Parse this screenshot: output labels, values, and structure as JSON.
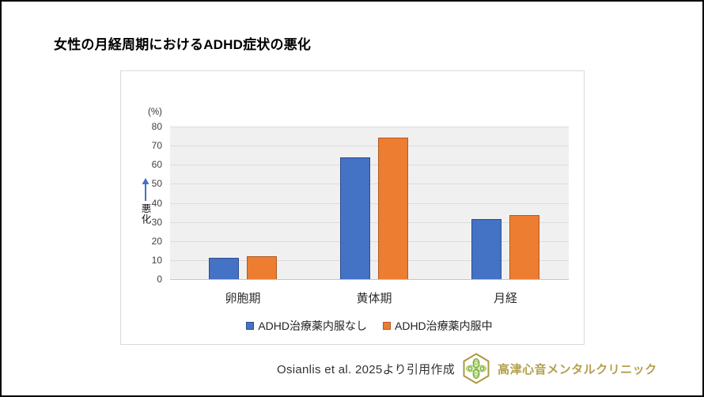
{
  "title": "女性の月経周期におけるADHD症状の悪化",
  "chart_data": {
    "type": "bar",
    "unit_label": "(%)",
    "axis_annotation": {
      "label": "悪化",
      "arrow_direction": "up",
      "arrow_color": "#4472C4"
    },
    "categories": [
      "卵胞期",
      "黄体期",
      "月経"
    ],
    "series": [
      {
        "name": "ADHD治療薬内服なし",
        "color": "#4472C4",
        "border_color": "#2E4D8F",
        "values": [
          11,
          64,
          31.5
        ]
      },
      {
        "name": "ADHD治療薬内服中",
        "color": "#ED7D31",
        "border_color": "#AE5A21",
        "values": [
          12,
          74,
          33.5
        ]
      }
    ],
    "ylim": [
      0,
      80
    ],
    "ytick_step": 10,
    "grid": true,
    "legend_position": "bottom",
    "plot_background": "#F0F0F0",
    "gridline_color": "#DCDCDC"
  },
  "footer": {
    "citation": "Osianlis et al. 2025より引用作成",
    "clinic_name": "高津心音メンタルクリニック",
    "clinic_color": "#B3A04C",
    "logo_colors": {
      "hexagon": "#AE9840",
      "leaf_dark": "#6FA63B",
      "leaf_light": "#9CC94F",
      "leaf_fill": "#E3EFC4"
    }
  }
}
